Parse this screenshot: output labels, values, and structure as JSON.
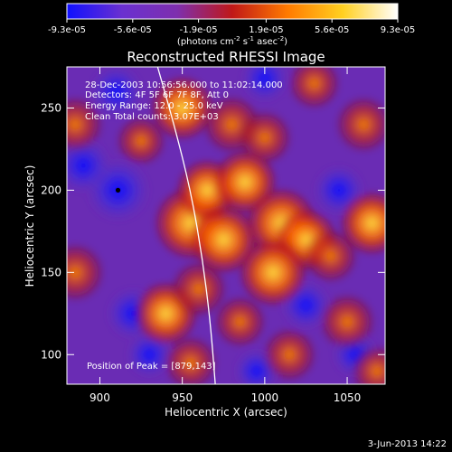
{
  "chart_data": {
    "type": "heatmap",
    "title": "Reconstructed RHESSI Image",
    "xlabel": "Heliocentric X (arcsec)",
    "ylabel": "Heliocentric Y (arcsec)",
    "xlim": [
      880,
      1073
    ],
    "ylim": [
      82,
      275
    ],
    "x_ticks": [
      900,
      950,
      1000,
      1050
    ],
    "y_ticks": [
      100,
      150,
      200,
      250
    ],
    "colorbar": {
      "ticks": [
        "-9.3e-05",
        "-5.6e-05",
        "-1.9e-05",
        "1.9e-05",
        "5.6e-05",
        "9.3e-05"
      ],
      "tick_values": [
        -9.3e-05,
        -5.6e-05,
        -1.9e-05,
        1.9e-05,
        5.6e-05,
        9.3e-05
      ],
      "units_label": "(photons cm",
      "units_exp1": "-2",
      "units_mid": " s",
      "units_exp2": "-1",
      "units_end": " asec",
      "units_exp3": "-2",
      "units_close": ")",
      "colors": [
        "#1010ff",
        "#6a30d0",
        "#7e2fae",
        "#c01818",
        "#ff7a00",
        "#ffd020",
        "#ffffff"
      ]
    },
    "annotations": {
      "time": "28-Dec-2003 10:56:56.000 to 11:02:14.000",
      "detectors": "Detectors: 4F 5F 6F 7F 8F, Att 0",
      "energy": "Energy Range: 12.0 - 25.0 keV",
      "clean": "Clean     Total counts: 3.07E+03",
      "peak": "Position of Peak = [879,143]"
    },
    "marker": {
      "x": 911,
      "y": 200
    },
    "limb_points": [
      [
        935,
        275
      ],
      [
        945,
        240
      ],
      [
        955,
        200
      ],
      [
        962,
        160
      ],
      [
        967,
        120
      ],
      [
        970,
        82
      ]
    ],
    "intensity_blobs": [
      {
        "x": 950,
        "y": 250,
        "value": 0.75
      },
      {
        "x": 980,
        "y": 240,
        "value": 0.65
      },
      {
        "x": 1000,
        "y": 232,
        "value": 0.55
      },
      {
        "x": 955,
        "y": 180,
        "value": 0.95
      },
      {
        "x": 965,
        "y": 200,
        "value": 0.7
      },
      {
        "x": 975,
        "y": 170,
        "value": 0.85
      },
      {
        "x": 988,
        "y": 205,
        "value": 0.75
      },
      {
        "x": 1010,
        "y": 180,
        "value": 0.9
      },
      {
        "x": 1025,
        "y": 170,
        "value": 0.7
      },
      {
        "x": 1005,
        "y": 150,
        "value": 0.85
      },
      {
        "x": 1040,
        "y": 160,
        "value": 0.55
      },
      {
        "x": 1065,
        "y": 180,
        "value": 0.75
      },
      {
        "x": 1060,
        "y": 240,
        "value": 0.6
      },
      {
        "x": 940,
        "y": 125,
        "value": 0.75
      },
      {
        "x": 960,
        "y": 140,
        "value": 0.6
      },
      {
        "x": 985,
        "y": 120,
        "value": 0.5
      },
      {
        "x": 1015,
        "y": 100,
        "value": 0.55
      },
      {
        "x": 955,
        "y": 95,
        "value": 0.55
      },
      {
        "x": 885,
        "y": 150,
        "value": 0.65
      },
      {
        "x": 885,
        "y": 240,
        "value": 0.6
      },
      {
        "x": 1050,
        "y": 120,
        "value": 0.6
      },
      {
        "x": 1068,
        "y": 90,
        "value": 0.5
      },
      {
        "x": 925,
        "y": 230,
        "value": 0.45
      },
      {
        "x": 1030,
        "y": 265,
        "value": 0.5
      }
    ],
    "dark_blobs": [
      {
        "x": 911,
        "y": 200,
        "value": -0.95
      },
      {
        "x": 890,
        "y": 215,
        "value": -0.7
      },
      {
        "x": 920,
        "y": 125,
        "value": -0.6
      },
      {
        "x": 1045,
        "y": 200,
        "value": -0.55
      },
      {
        "x": 1025,
        "y": 130,
        "value": -0.5
      },
      {
        "x": 1000,
        "y": 268,
        "value": -0.45
      },
      {
        "x": 910,
        "y": 260,
        "value": -0.6
      },
      {
        "x": 930,
        "y": 100,
        "value": -0.4
      },
      {
        "x": 1055,
        "y": 100,
        "value": -0.4
      },
      {
        "x": 995,
        "y": 90,
        "value": -0.35
      }
    ]
  },
  "footer": {
    "date": "3-Jun-2013 14:22"
  }
}
